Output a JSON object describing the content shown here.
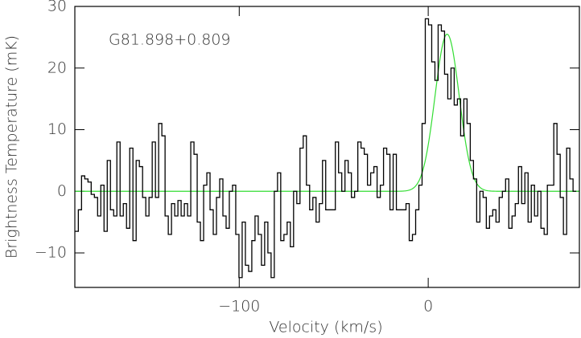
{
  "chart_data": {
    "type": "step",
    "annotation": "G81.898+0.809",
    "x_label": "Velocity (km/s)",
    "y_label": "Brightness Temperature (mK)",
    "xlim": [
      -187,
      80
    ],
    "ylim": [
      -15.6,
      30
    ],
    "xticks": [
      {
        "value": -100,
        "label": "−100"
      },
      0
    ],
    "yticks": [
      {
        "value": -10,
        "label": "−10"
      },
      0,
      10,
      20,
      30
    ],
    "channel_width": 1.7,
    "x_start": -186,
    "series": [
      {
        "color": "#000000",
        "values": [
          -6.5,
          -3,
          2.5,
          2,
          1.5,
          -0.5,
          -1,
          -4,
          1,
          -6.5,
          5,
          -3,
          -4,
          8,
          -4,
          -2,
          -6,
          7,
          -8,
          5,
          4,
          -1,
          -4,
          -1,
          8,
          -1,
          11,
          9,
          -4,
          -7,
          -2,
          -4,
          -1.5,
          -4,
          -2,
          -4,
          8,
          6,
          -5,
          -8,
          1,
          3,
          -3,
          -7,
          -1,
          2,
          -4,
          -6,
          0,
          1,
          -7,
          -14,
          -5,
          -12,
          -13,
          -8,
          -4,
          -7,
          -12,
          -5,
          -10,
          -14,
          0,
          3,
          -8,
          -7,
          -5,
          -9,
          0,
          -2,
          7,
          9,
          1,
          -3,
          -1,
          -5,
          -2,
          5,
          -3,
          -3,
          -3,
          8,
          3,
          0,
          5,
          3,
          -1,
          0,
          8,
          7,
          6,
          1,
          3,
          4,
          -1,
          1,
          7,
          6,
          -3,
          6,
          -3,
          -3,
          -3,
          -2,
          -8,
          -7,
          -3,
          1,
          11,
          28,
          27,
          21,
          18,
          27,
          26,
          19,
          15,
          20,
          14,
          15,
          9,
          15,
          11,
          5,
          2,
          -5,
          0,
          -1,
          -6,
          -4,
          -3,
          -5,
          -1,
          0,
          2,
          -6,
          -4,
          -2,
          4,
          -2,
          3,
          -5,
          1,
          -4,
          0,
          -6,
          -7,
          1,
          1,
          11,
          6,
          -1,
          -7,
          7,
          2,
          0
        ]
      }
    ],
    "fit": {
      "color": "#33dd33",
      "amplitude": 25.5,
      "center": 10,
      "sigma": 6.4
    }
  }
}
